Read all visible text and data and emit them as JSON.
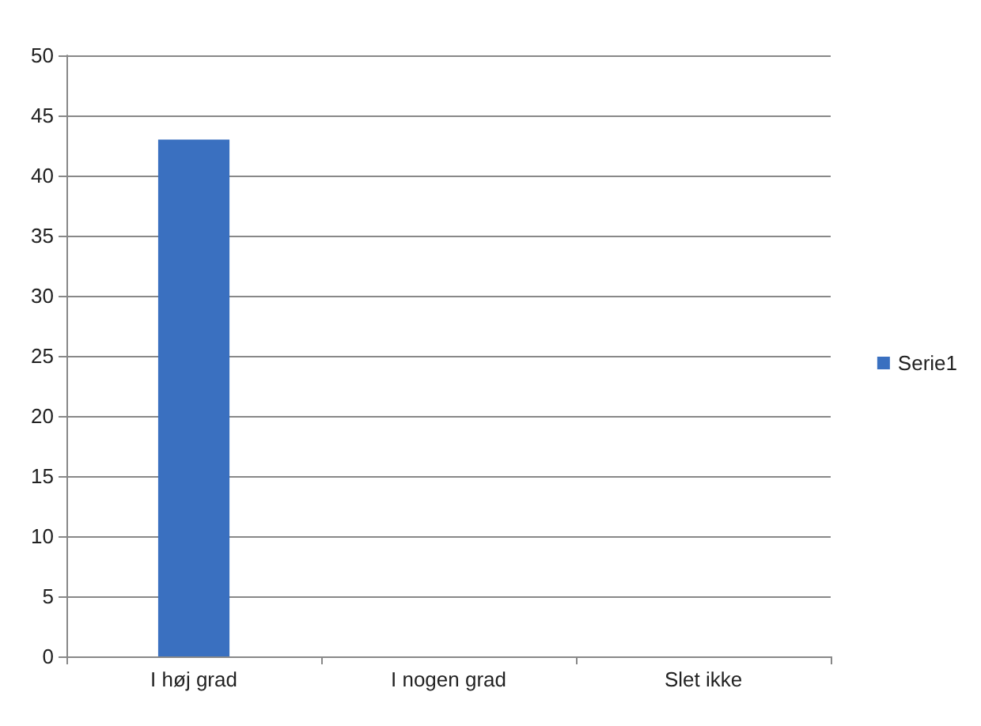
{
  "chart_data": {
    "type": "bar",
    "categories": [
      "I høj grad",
      "I nogen grad",
      "Slet ikke"
    ],
    "series": [
      {
        "name": "Serie1",
        "color": "#3a70c0",
        "values": [
          43,
          0,
          0
        ]
      }
    ],
    "ylim": [
      0,
      50
    ],
    "yticks": [
      0,
      5,
      10,
      15,
      20,
      25,
      30,
      35,
      40,
      45,
      50
    ],
    "grid": "y",
    "legend": "right"
  }
}
